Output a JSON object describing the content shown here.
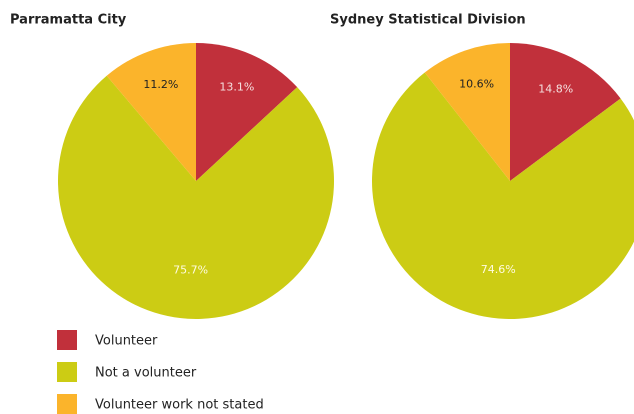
{
  "chart_data": [
    {
      "type": "pie",
      "title": "Parramatta City",
      "categories": [
        "Volunteer",
        "Not a volunteer",
        "Volunteer work not stated"
      ],
      "values": [
        13.1,
        75.7,
        11.2
      ],
      "value_labels": [
        "13.1%",
        "75.7%",
        "11.2%"
      ],
      "colors": [
        "#c1303b",
        "#cccc14",
        "#fbb42b"
      ]
    },
    {
      "type": "pie",
      "title": "Sydney Statistical Division",
      "categories": [
        "Volunteer",
        "Not a volunteer",
        "Volunteer work not stated"
      ],
      "values": [
        14.8,
        74.6,
        10.6
      ],
      "value_labels": [
        "14.8%",
        "74.6%",
        "10.6%"
      ],
      "colors": [
        "#c1303b",
        "#cccc14",
        "#fbb42b"
      ]
    }
  ]
}
